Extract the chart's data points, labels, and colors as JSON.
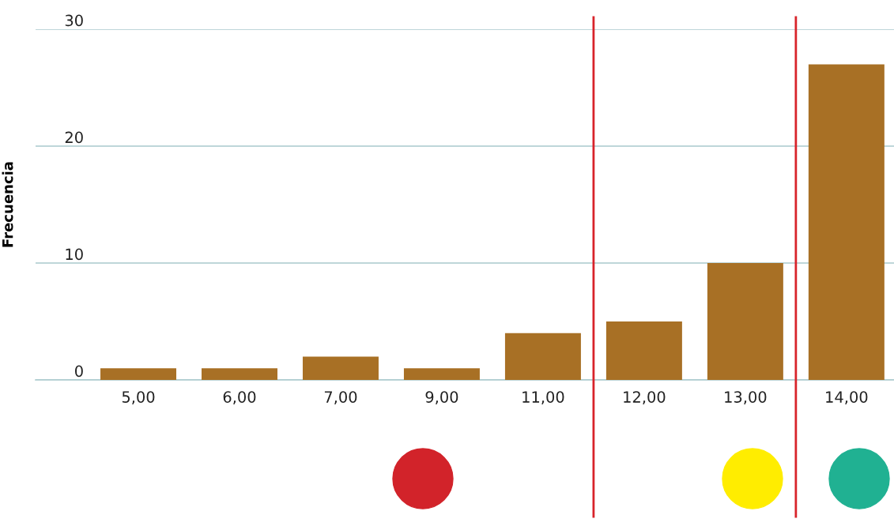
{
  "chart_data": {
    "type": "bar",
    "ylabel": "Frecuencia",
    "categories": [
      "5,00",
      "6,00",
      "7,00",
      "9,00",
      "11,00",
      "12,00",
      "13,00",
      "14,00"
    ],
    "values": [
      1,
      1,
      2,
      1,
      4,
      5,
      10,
      27
    ],
    "color": "#a87025",
    "ylim": [
      0,
      30
    ],
    "yticks": [
      0,
      10,
      20,
      30
    ],
    "grid": "y"
  }
}
